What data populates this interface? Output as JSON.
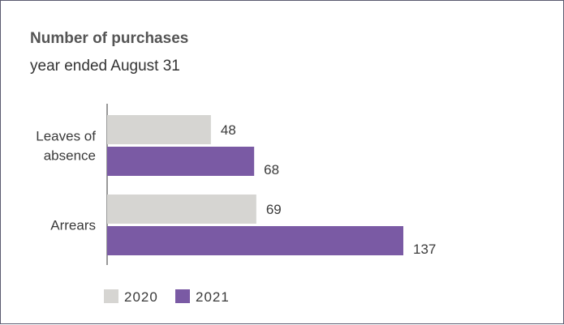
{
  "chart_data": {
    "type": "bar",
    "orientation": "horizontal",
    "title": "Number of purchases",
    "subtitle": "year ended August 31",
    "categories": [
      [
        "Leaves of",
        "absence"
      ],
      [
        "Arrears"
      ]
    ],
    "series": [
      {
        "name": "2020",
        "color": "#d6d5d2",
        "values": [
          48,
          69
        ]
      },
      {
        "name": "2021",
        "color": "#7a5aa4",
        "values": [
          68,
          137
        ]
      }
    ],
    "xlim": [
      0,
      137
    ],
    "grid": false,
    "legend_position": "bottom-left"
  }
}
